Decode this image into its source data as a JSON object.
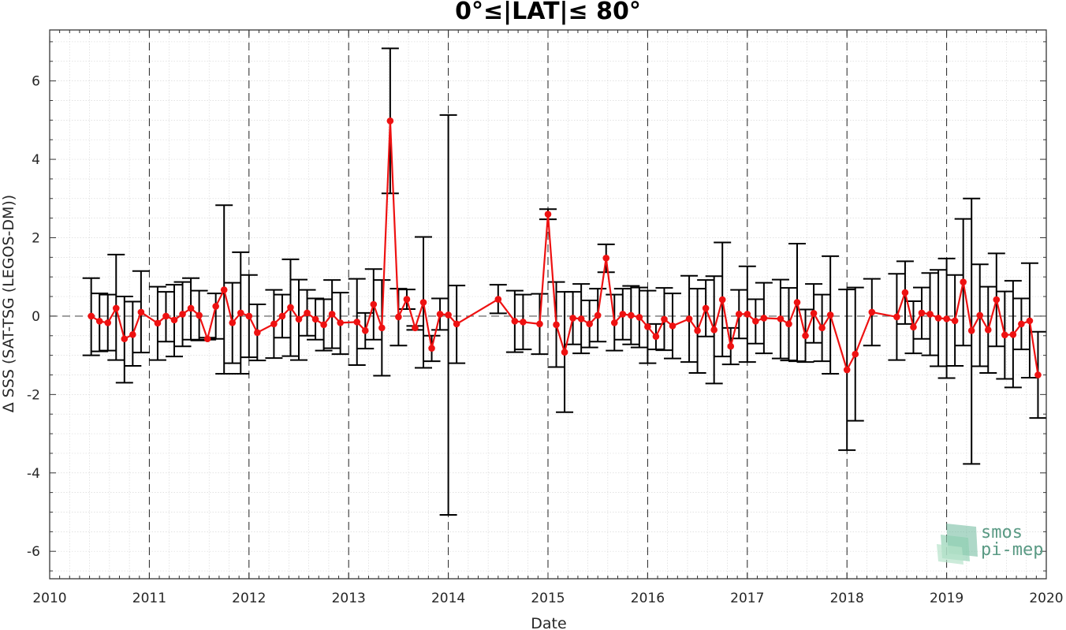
{
  "chart_data": {
    "type": "line",
    "title": "0°≤|LAT|≤ 80°",
    "xlabel": "Date",
    "ylabel": "Δ SSS (SAT-TSG (LEGOS-DM))",
    "xlim": [
      2010,
      2020
    ],
    "ylim": [
      -6.7,
      7.3
    ],
    "x_ticks": [
      "2010",
      "2011",
      "2012",
      "2013",
      "2014",
      "2015",
      "2016",
      "2017",
      "2018",
      "2019",
      "2020"
    ],
    "y_ticks": [
      "-6",
      "-4",
      "-2",
      "0",
      "2",
      "4",
      "6"
    ],
    "grid": true,
    "reference_line": 0,
    "year_markers": [
      2011,
      2012,
      2013,
      2014,
      2015,
      2016,
      2017,
      2018,
      2019
    ],
    "colors": {
      "line": "#ee1111",
      "errorbar": "#000000",
      "grid": "#d9d9d9",
      "markers": "#333333"
    },
    "series": [
      {
        "points": [
          {
            "x": "2010-06",
            "y": 0.0,
            "lo": -1.0,
            "hi": 0.97
          },
          {
            "x": "2010-07",
            "y": -0.13,
            "lo": -0.9,
            "hi": 0.58
          },
          {
            "x": "2010-08",
            "y": -0.17,
            "lo": -0.88,
            "hi": 0.55
          },
          {
            "x": "2010-09",
            "y": 0.2,
            "lo": -1.12,
            "hi": 1.57
          },
          {
            "x": "2010-10",
            "y": -0.58,
            "lo": -1.7,
            "hi": 0.5
          },
          {
            "x": "2010-11",
            "y": -0.47,
            "lo": -1.27,
            "hi": 0.37
          },
          {
            "x": "2010-12",
            "y": 0.1,
            "lo": -0.93,
            "hi": 1.15
          },
          {
            "x": "2011-02",
            "y": -0.18,
            "lo": -1.12,
            "hi": 0.75
          },
          {
            "x": "2011-03",
            "y": 0.0,
            "lo": -0.65,
            "hi": 0.62
          },
          {
            "x": "2011-04",
            "y": -0.1,
            "lo": -1.03,
            "hi": 0.8
          },
          {
            "x": "2011-05",
            "y": 0.05,
            "lo": -0.77,
            "hi": 0.87
          },
          {
            "x": "2011-06",
            "y": 0.2,
            "lo": -0.6,
            "hi": 0.97
          },
          {
            "x": "2011-07",
            "y": 0.02,
            "lo": -0.62,
            "hi": 0.65
          },
          {
            "x": "2011-08",
            "y": -0.58,
            "lo": -0.6,
            "hi": -0.55
          },
          {
            "x": "2011-09",
            "y": 0.25,
            "lo": -0.58,
            "hi": 0.58
          },
          {
            "x": "2011-10",
            "y": 0.67,
            "lo": -1.47,
            "hi": 2.83
          },
          {
            "x": "2011-11",
            "y": -0.17,
            "lo": -1.2,
            "hi": 0.85
          },
          {
            "x": "2011-12",
            "y": 0.08,
            "lo": -1.47,
            "hi": 1.63
          },
          {
            "x": "2012-01",
            "y": 0.0,
            "lo": -1.05,
            "hi": 1.05
          },
          {
            "x": "2012-02",
            "y": -0.42,
            "lo": -1.13,
            "hi": 0.3
          },
          {
            "x": "2012-04",
            "y": -0.2,
            "lo": -1.07,
            "hi": 0.67
          },
          {
            "x": "2012-05",
            "y": 0.0,
            "lo": -0.55,
            "hi": 0.55
          },
          {
            "x": "2012-06",
            "y": 0.22,
            "lo": -1.02,
            "hi": 1.45
          },
          {
            "x": "2012-07",
            "y": -0.08,
            "lo": -1.12,
            "hi": 0.93
          },
          {
            "x": "2012-08",
            "y": 0.08,
            "lo": -0.5,
            "hi": 0.67
          },
          {
            "x": "2012-09",
            "y": -0.08,
            "lo": -0.6,
            "hi": 0.45
          },
          {
            "x": "2012-10",
            "y": -0.22,
            "lo": -0.88,
            "hi": 0.43
          },
          {
            "x": "2012-11",
            "y": 0.05,
            "lo": -0.82,
            "hi": 0.92
          },
          {
            "x": "2012-12",
            "y": -0.17,
            "lo": -0.97,
            "hi": 0.6
          },
          {
            "x": "2013-02",
            "y": -0.15,
            "lo": -1.25,
            "hi": 0.95
          },
          {
            "x": "2013-03",
            "y": -0.37,
            "lo": -0.83,
            "hi": 0.08
          },
          {
            "x": "2013-04",
            "y": 0.3,
            "lo": -0.6,
            "hi": 1.2
          },
          {
            "x": "2013-05",
            "y": -0.3,
            "lo": -1.52,
            "hi": 0.92
          },
          {
            "x": "2013-06",
            "y": 4.98,
            "lo": 3.13,
            "hi": 6.83
          },
          {
            "x": "2013-07",
            "y": -0.02,
            "lo": -0.75,
            "hi": 0.7
          },
          {
            "x": "2013-08",
            "y": 0.43,
            "lo": 0.18,
            "hi": 0.68
          },
          {
            "x": "2013-09",
            "y": -0.3,
            "lo": -0.35,
            "hi": -0.25
          },
          {
            "x": "2013-10",
            "y": 0.35,
            "lo": -1.32,
            "hi": 2.02
          },
          {
            "x": "2013-11",
            "y": -0.82,
            "lo": -1.15,
            "hi": -0.5
          },
          {
            "x": "2013-12",
            "y": 0.05,
            "lo": -0.35,
            "hi": 0.45
          },
          {
            "x": "2014-01",
            "y": 0.03,
            "lo": -5.07,
            "hi": 5.13
          },
          {
            "x": "2014-02",
            "y": -0.2,
            "lo": -1.2,
            "hi": 0.78
          },
          {
            "x": "2014-07",
            "y": 0.43,
            "lo": 0.07,
            "hi": 0.8
          },
          {
            "x": "2014-09",
            "y": -0.13,
            "lo": -0.92,
            "hi": 0.65
          },
          {
            "x": "2014-10",
            "y": -0.15,
            "lo": -0.85,
            "hi": 0.55
          },
          {
            "x": "2014-12",
            "y": -0.2,
            "lo": -0.97,
            "hi": 0.57
          },
          {
            "x": "2015-01",
            "y": 2.6,
            "lo": 2.47,
            "hi": 2.73
          },
          {
            "x": "2015-02",
            "y": -0.22,
            "lo": -1.3,
            "hi": 0.87
          },
          {
            "x": "2015-03",
            "y": -0.92,
            "lo": -2.45,
            "hi": 0.62
          },
          {
            "x": "2015-04",
            "y": -0.05,
            "lo": -0.72,
            "hi": 0.62
          },
          {
            "x": "2015-05",
            "y": -0.07,
            "lo": -0.95,
            "hi": 0.82
          },
          {
            "x": "2015-06",
            "y": -0.2,
            "lo": -0.8,
            "hi": 0.4
          },
          {
            "x": "2015-07",
            "y": 0.02,
            "lo": -0.65,
            "hi": 0.7
          },
          {
            "x": "2015-08",
            "y": 1.48,
            "lo": 1.12,
            "hi": 1.83
          },
          {
            "x": "2015-09",
            "y": -0.17,
            "lo": -0.88,
            "hi": 0.55
          },
          {
            "x": "2015-10",
            "y": 0.05,
            "lo": -0.6,
            "hi": 0.7
          },
          {
            "x": "2015-11",
            "y": 0.02,
            "lo": -0.72,
            "hi": 0.77
          },
          {
            "x": "2015-12",
            "y": -0.03,
            "lo": -0.8,
            "hi": 0.73
          },
          {
            "x": "2016-01",
            "y": -0.27,
            "lo": -1.2,
            "hi": 0.65
          },
          {
            "x": "2016-02",
            "y": -0.52,
            "lo": -0.85,
            "hi": -0.2
          },
          {
            "x": "2016-03",
            "y": -0.08,
            "lo": -0.87,
            "hi": 0.72
          },
          {
            "x": "2016-04",
            "y": -0.25,
            "lo": -1.08,
            "hi": 0.58
          },
          {
            "x": "2016-06",
            "y": -0.07,
            "lo": -1.17,
            "hi": 1.03
          },
          {
            "x": "2016-07",
            "y": -0.37,
            "lo": -1.45,
            "hi": 0.7
          },
          {
            "x": "2016-08",
            "y": 0.2,
            "lo": -0.52,
            "hi": 0.92
          },
          {
            "x": "2016-09",
            "y": -0.35,
            "lo": -1.72,
            "hi": 1.02
          },
          {
            "x": "2016-10",
            "y": 0.42,
            "lo": -1.03,
            "hi": 1.88
          },
          {
            "x": "2016-11",
            "y": -0.77,
            "lo": -1.23,
            "hi": -0.3
          },
          {
            "x": "2016-12",
            "y": 0.05,
            "lo": -0.57,
            "hi": 0.67
          },
          {
            "x": "2017-01",
            "y": 0.05,
            "lo": -1.17,
            "hi": 1.27
          },
          {
            "x": "2017-02",
            "y": -0.13,
            "lo": -0.7,
            "hi": 0.43
          },
          {
            "x": "2017-03",
            "y": -0.05,
            "lo": -0.95,
            "hi": 0.85
          },
          {
            "x": "2017-05",
            "y": -0.07,
            "lo": -1.08,
            "hi": 0.93
          },
          {
            "x": "2017-06",
            "y": -0.2,
            "lo": -1.13,
            "hi": 0.72
          },
          {
            "x": "2017-07",
            "y": 0.35,
            "lo": -1.15,
            "hi": 1.85
          },
          {
            "x": "2017-08",
            "y": -0.5,
            "lo": -1.17,
            "hi": 0.17
          },
          {
            "x": "2017-09",
            "y": 0.07,
            "lo": -0.68,
            "hi": 0.82
          },
          {
            "x": "2017-10",
            "y": -0.3,
            "lo": -1.15,
            "hi": 0.55
          },
          {
            "x": "2017-11",
            "y": 0.03,
            "lo": -1.47,
            "hi": 1.53
          },
          {
            "x": "2018-01",
            "y": -1.37,
            "lo": -3.42,
            "hi": 0.68
          },
          {
            "x": "2018-02",
            "y": -0.97,
            "lo": -2.67,
            "hi": 0.73
          },
          {
            "x": "2018-04",
            "y": 0.1,
            "lo": -0.75,
            "hi": 0.95
          },
          {
            "x": "2018-07",
            "y": -0.02,
            "lo": -1.12,
            "hi": 1.08
          },
          {
            "x": "2018-08",
            "y": 0.6,
            "lo": -0.2,
            "hi": 1.4
          },
          {
            "x": "2018-09",
            "y": -0.28,
            "lo": -0.95,
            "hi": 0.38
          },
          {
            "x": "2018-10",
            "y": 0.08,
            "lo": -0.58,
            "hi": 0.73
          },
          {
            "x": "2018-11",
            "y": 0.05,
            "lo": -1.0,
            "hi": 1.1
          },
          {
            "x": "2018-12",
            "y": -0.05,
            "lo": -1.28,
            "hi": 1.18
          },
          {
            "x": "2019-01",
            "y": -0.07,
            "lo": -1.58,
            "hi": 1.47
          },
          {
            "x": "2019-02",
            "y": -0.12,
            "lo": -1.27,
            "hi": 1.05
          },
          {
            "x": "2019-03",
            "y": 0.87,
            "lo": -0.75,
            "hi": 2.48
          },
          {
            "x": "2019-04",
            "y": -0.37,
            "lo": -3.77,
            "hi": 3.0
          },
          {
            "x": "2019-05",
            "y": 0.02,
            "lo": -1.28,
            "hi": 1.32
          },
          {
            "x": "2019-06",
            "y": -0.35,
            "lo": -1.45,
            "hi": 0.75
          },
          {
            "x": "2019-07",
            "y": 0.42,
            "lo": -0.77,
            "hi": 1.6
          },
          {
            "x": "2019-08",
            "y": -0.48,
            "lo": -1.6,
            "hi": 0.63
          },
          {
            "x": "2019-09",
            "y": -0.47,
            "lo": -1.82,
            "hi": 0.9
          },
          {
            "x": "2019-10",
            "y": -0.2,
            "lo": -0.85,
            "hi": 0.45
          },
          {
            "x": "2019-11",
            "y": -0.12,
            "lo": -1.57,
            "hi": 1.35
          },
          {
            "x": "2019-12",
            "y": -1.5,
            "lo": -2.6,
            "hi": -0.4
          }
        ]
      }
    ]
  },
  "logo": {
    "line1": "smos",
    "line2": "pi-mep"
  }
}
